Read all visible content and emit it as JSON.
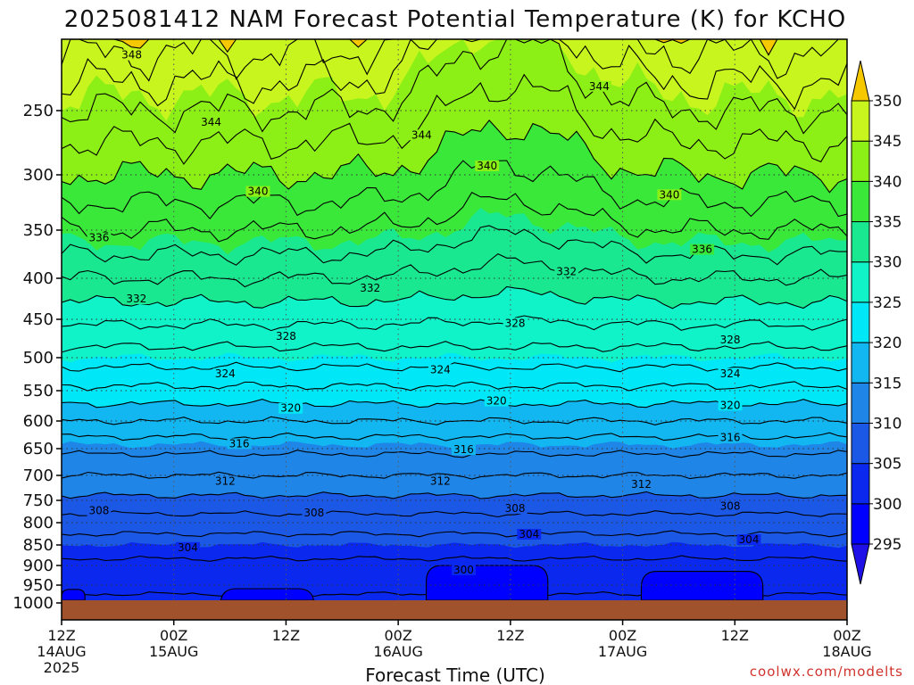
{
  "chart_data": {
    "type": "contour",
    "title": "2025081412 NAM Forecast Potential Temperature (K) for KCHO",
    "xlabel": "Forecast Time (UTC)",
    "ylabel": "",
    "credit": "coolwx.com/modelts",
    "x_ticks": [
      {
        "hour": 0,
        "label": "12Z",
        "sub": "14AUG",
        "sub2": "2025"
      },
      {
        "hour": 12,
        "label": "00Z",
        "sub": "15AUG",
        "sub2": ""
      },
      {
        "hour": 24,
        "label": "12Z",
        "sub": "",
        "sub2": ""
      },
      {
        "hour": 36,
        "label": "00Z",
        "sub": "16AUG",
        "sub2": ""
      },
      {
        "hour": 48,
        "label": "12Z",
        "sub": "",
        "sub2": ""
      },
      {
        "hour": 60,
        "label": "00Z",
        "sub": "17AUG",
        "sub2": ""
      },
      {
        "hour": 72,
        "label": "12Z",
        "sub": "",
        "sub2": ""
      },
      {
        "hour": 84,
        "label": "00Z",
        "sub": "18AUG",
        "sub2": ""
      }
    ],
    "x_range": [
      0,
      84
    ],
    "y_ticks": [
      250,
      300,
      350,
      400,
      450,
      500,
      550,
      600,
      650,
      700,
      750,
      800,
      850,
      900,
      950,
      1000
    ],
    "y_range": [
      200,
      1000
    ],
    "colorbar": {
      "levels": [
        295,
        300,
        305,
        310,
        315,
        320,
        325,
        330,
        335,
        340,
        345,
        350
      ],
      "colors": [
        "#0000ff",
        "#0a28ee",
        "#1b58e6",
        "#1f86e8",
        "#12b6f0",
        "#00e8f8",
        "#10f2c8",
        "#1ae890",
        "#3ae83a",
        "#8cf016",
        "#c8f51e",
        "#ffff00"
      ],
      "below_color": "#1e10e6",
      "above_color": "#f5c800"
    },
    "profile": [
      {
        "p": 1000,
        "theta": 301.5
      },
      {
        "p": 950,
        "theta": 302.5
      },
      {
        "p": 900,
        "theta": 303.5
      },
      {
        "p": 850,
        "theta": 305.0
      },
      {
        "p": 800,
        "theta": 307.0
      },
      {
        "p": 750,
        "theta": 309.5
      },
      {
        "p": 700,
        "theta": 312.0
      },
      {
        "p": 650,
        "theta": 314.5
      },
      {
        "p": 600,
        "theta": 318.0
      },
      {
        "p": 550,
        "theta": 321.5
      },
      {
        "p": 500,
        "theta": 325.0
      },
      {
        "p": 450,
        "theta": 328.5
      },
      {
        "p": 400,
        "theta": 332.0
      },
      {
        "p": 350,
        "theta": 336.0
      },
      {
        "p": 300,
        "theta": 340.0
      },
      {
        "p": 250,
        "theta": 344.0
      },
      {
        "p": 200,
        "theta": 349.0
      }
    ],
    "contour_labels": [
      {
        "value": "348",
        "hour": 7.5,
        "p": 211
      },
      {
        "value": "344",
        "hour": 16,
        "p": 259
      },
      {
        "value": "344",
        "hour": 38.5,
        "p": 269
      },
      {
        "value": "344",
        "hour": 57.5,
        "p": 233
      },
      {
        "value": "340",
        "hour": 21,
        "p": 315
      },
      {
        "value": "340",
        "hour": 45.5,
        "p": 293
      },
      {
        "value": "340",
        "hour": 65,
        "p": 318
      },
      {
        "value": "336",
        "hour": 4,
        "p": 358
      },
      {
        "value": "336",
        "hour": 68.5,
        "p": 370
      },
      {
        "value": "332",
        "hour": 8,
        "p": 425
      },
      {
        "value": "332",
        "hour": 33,
        "p": 412
      },
      {
        "value": "332",
        "hour": 54,
        "p": 393
      },
      {
        "value": "328",
        "hour": 24,
        "p": 472
      },
      {
        "value": "328",
        "hour": 48.5,
        "p": 455
      },
      {
        "value": "328",
        "hour": 71.5,
        "p": 477
      },
      {
        "value": "324",
        "hour": 17.5,
        "p": 524
      },
      {
        "value": "324",
        "hour": 40.5,
        "p": 518
      },
      {
        "value": "324",
        "hour": 71.5,
        "p": 524
      },
      {
        "value": "320",
        "hour": 24.5,
        "p": 579
      },
      {
        "value": "320",
        "hour": 46.5,
        "p": 567
      },
      {
        "value": "320",
        "hour": 71.5,
        "p": 574
      },
      {
        "value": "316",
        "hour": 19,
        "p": 641
      },
      {
        "value": "316",
        "hour": 43,
        "p": 652
      },
      {
        "value": "316",
        "hour": 71.5,
        "p": 630
      },
      {
        "value": "312",
        "hour": 17.5,
        "p": 712
      },
      {
        "value": "312",
        "hour": 40.5,
        "p": 712
      },
      {
        "value": "312",
        "hour": 62,
        "p": 718
      },
      {
        "value": "308",
        "hour": 4,
        "p": 773
      },
      {
        "value": "308",
        "hour": 27,
        "p": 778
      },
      {
        "value": "308",
        "hour": 48.5,
        "p": 768
      },
      {
        "value": "308",
        "hour": 71.5,
        "p": 763
      },
      {
        "value": "304",
        "hour": 13.5,
        "p": 856
      },
      {
        "value": "304",
        "hour": 50,
        "p": 826
      },
      {
        "value": "304",
        "hour": 73.5,
        "p": 838
      },
      {
        "value": "300",
        "hour": 43,
        "p": 911
      }
    ],
    "cold_pools": [
      {
        "t0": 0,
        "t1": 2.5,
        "p_top": 962
      },
      {
        "t0": 17,
        "t1": 27,
        "p_top": 960
      },
      {
        "t0": 39,
        "t1": 52,
        "p_top": 900
      },
      {
        "t0": 62,
        "t1": 75,
        "p_top": 915
      }
    ],
    "grid": true
  }
}
